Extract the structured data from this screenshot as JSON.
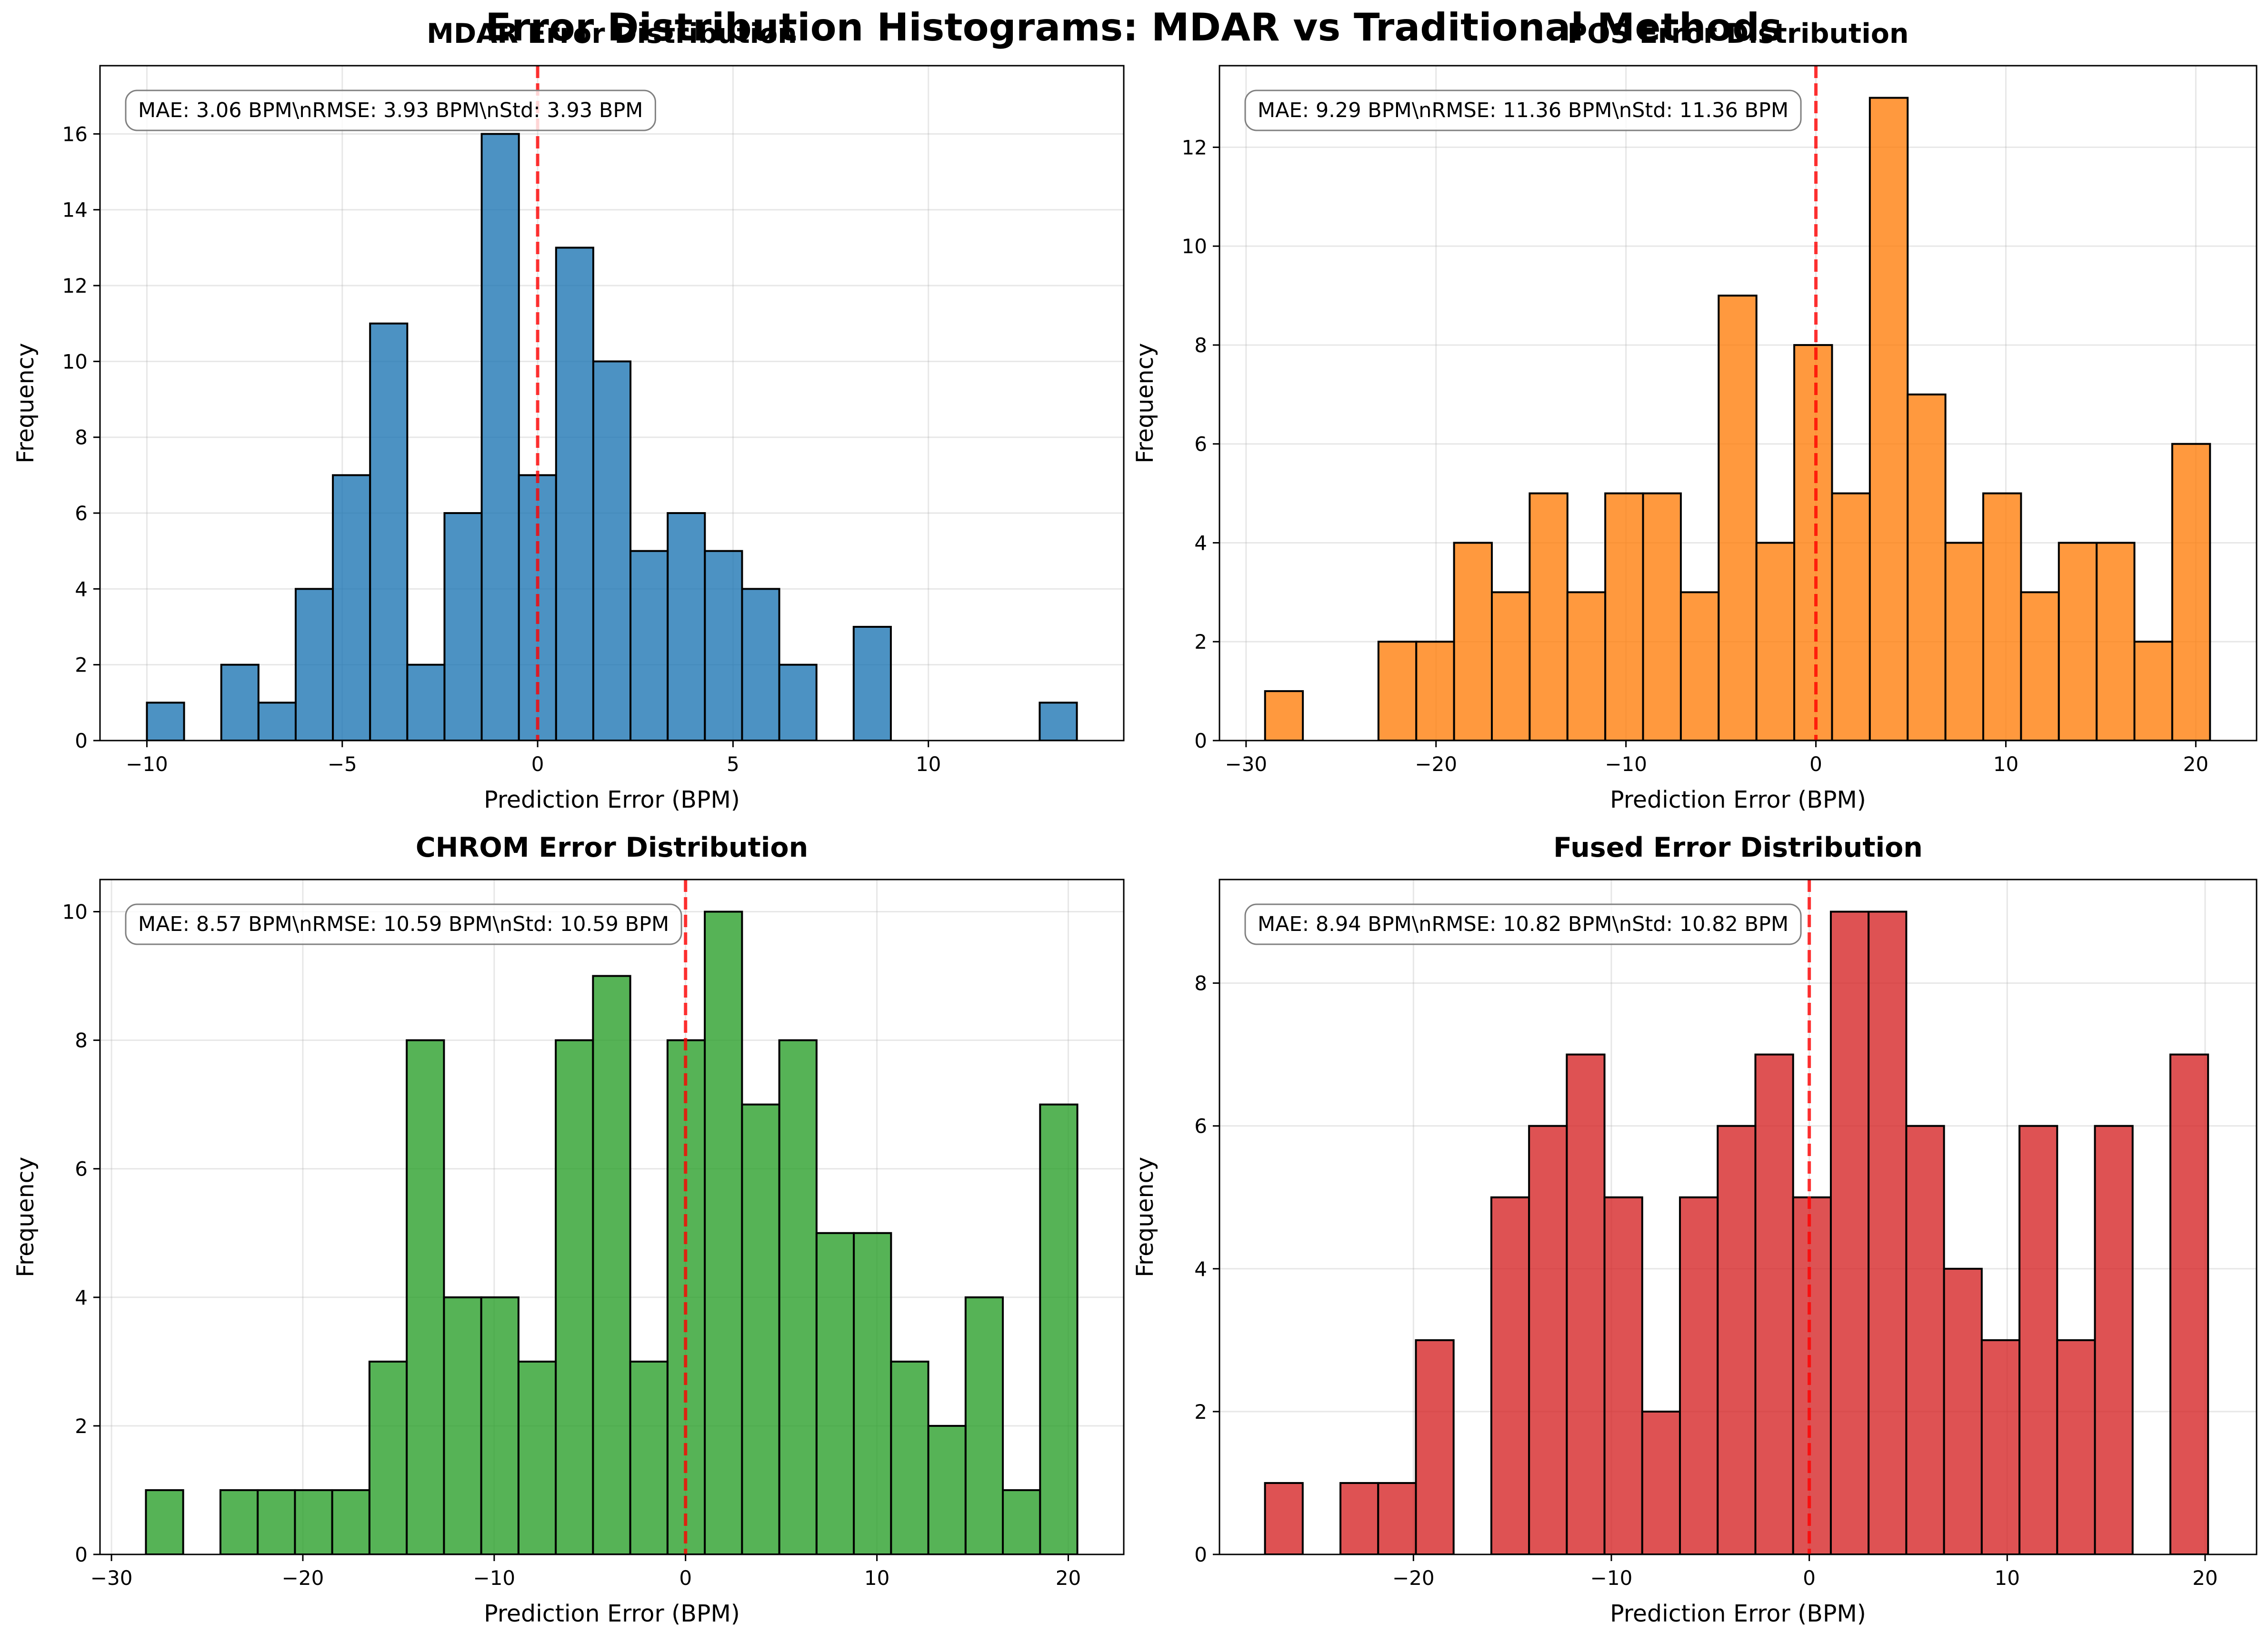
{
  "title": "Error Distribution Histograms: MDAR vs Traditional Methods",
  "colors": {
    "zero_line": "#ff0000"
  },
  "chart_data": [
    {
      "type": "bar",
      "title": "MDAR Error Distribution",
      "color": "#1f77b4",
      "xlabel": "Prediction Error (BPM)",
      "ylabel": "Frequency",
      "stats_text": "MAE: 3.06 BPM\\nRMSE: 3.93 BPM\\nStd: 3.93 BPM",
      "xlim": [
        -11.2,
        15.0
      ],
      "ylim": [
        0,
        17.8
      ],
      "xticks": [
        -10,
        -5,
        0,
        5,
        10
      ],
      "yticks": [
        0,
        2,
        4,
        6,
        8,
        10,
        12,
        14,
        16
      ],
      "bin_start": -10.0,
      "bin_width": 0.952,
      "values": [
        1,
        0,
        2,
        1,
        4,
        7,
        11,
        2,
        6,
        16,
        7,
        13,
        10,
        5,
        6,
        5,
        4,
        2,
        0,
        3,
        0,
        0,
        0,
        0,
        1
      ],
      "reference_x": 0
    },
    {
      "type": "bar",
      "title": "POS Error Distribution",
      "color": "#ff7f0e",
      "xlabel": "Prediction Error (BPM)",
      "ylabel": "Frequency",
      "stats_text": "MAE: 9.29 BPM\\nRMSE: 11.36 BPM\\nStd: 11.36 BPM",
      "xlim": [
        -31.4,
        23.2
      ],
      "ylim": [
        0,
        13.65
      ],
      "xticks": [
        -30,
        -20,
        -10,
        0,
        10,
        20
      ],
      "yticks": [
        0,
        2,
        4,
        6,
        8,
        10,
        12
      ],
      "bin_start": -29.0,
      "bin_width": 1.99,
      "values": [
        1,
        0,
        0,
        2,
        2,
        4,
        3,
        5,
        3,
        5,
        5,
        3,
        9,
        4,
        8,
        5,
        13,
        7,
        4,
        5,
        3,
        4,
        4,
        2,
        6
      ],
      "reference_x": 0
    },
    {
      "type": "bar",
      "title": "CHROM Error Distribution",
      "color": "#2ca02c",
      "xlabel": "Prediction Error (BPM)",
      "ylabel": "Frequency",
      "stats_text": "MAE: 8.57 BPM\\nRMSE: 10.59 BPM\\nStd: 10.59 BPM",
      "xlim": [
        -30.6,
        22.9
      ],
      "ylim": [
        0,
        10.5
      ],
      "xticks": [
        -30,
        -20,
        -10,
        0,
        10,
        20
      ],
      "yticks": [
        0,
        2,
        4,
        6,
        8,
        10
      ],
      "bin_start": -28.2,
      "bin_width": 1.947,
      "values": [
        1,
        0,
        1,
        1,
        1,
        1,
        3,
        8,
        4,
        4,
        3,
        8,
        9,
        3,
        8,
        10,
        7,
        8,
        5,
        5,
        3,
        2,
        4,
        1,
        7
      ],
      "reference_x": 0
    },
    {
      "type": "bar",
      "title": "Fused Error Distribution",
      "color": "#d62728",
      "xlabel": "Prediction Error (BPM)",
      "ylabel": "Frequency",
      "stats_text": "MAE: 8.94 BPM\\nRMSE: 10.82 BPM\\nStd: 10.82 BPM",
      "xlim": [
        -29.8,
        22.6
      ],
      "ylim": [
        0,
        9.45
      ],
      "xticks": [
        -20,
        -10,
        0,
        10,
        20
      ],
      "yticks": [
        0,
        2,
        4,
        6,
        8
      ],
      "bin_start": -27.5,
      "bin_width": 1.906,
      "values": [
        1,
        0,
        1,
        1,
        3,
        0,
        5,
        6,
        7,
        5,
        2,
        5,
        6,
        7,
        5,
        9,
        9,
        6,
        4,
        3,
        6,
        3,
        6,
        0,
        7
      ],
      "reference_x": 0
    }
  ]
}
